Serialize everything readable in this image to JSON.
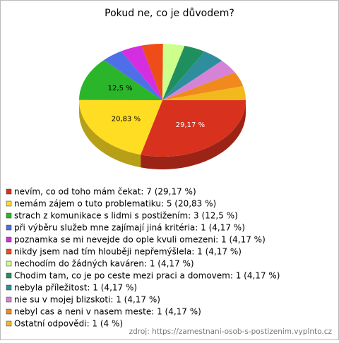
{
  "chart_data": {
    "type": "pie",
    "title": "Pokud ne, co je důvodem?",
    "categories": [
      "nevím, co od toho mám čekat: 7 (29,17 %)",
      "nemám zájem o tuto problematiku: 5 (20,83 %)",
      "strach z komunikace s lidmi s postižením: 3 (12,5 %)",
      "při výběru služeb mne zajímají jiná kritéria: 1 (4,17 %)",
      "poznamka se mi nevejde do ople kvuli omezeni: 1 (4,17 %)",
      "nikdy jsem nad tím hlouběji nepřemýšlela: 1 (4,17 %)",
      "nechodím do žádných kaváren: 1 (4,17 %)",
      "Chodim tam, co je po ceste mezi praci a domovem: 1 (4,17 %)",
      "nebyla příležitost: 1 (4,17 %)",
      "nie su v mojej blizskoti: 1 (4,17 %)",
      "nebyl cas a neni v nasem meste: 1 (4,17 %)",
      "Ostatní odpovědi: 1 (4 %)"
    ],
    "values": [
      29.17,
      20.83,
      12.5,
      4.17,
      4.17,
      4.17,
      4.17,
      4.17,
      4.17,
      4.17,
      4.17,
      4
    ],
    "value_labels": [
      "29,17 %",
      "20,83 %",
      "12,5 %",
      null,
      null,
      null,
      null,
      null,
      null,
      null,
      null,
      null
    ],
    "colors": [
      "#d8321e",
      "#ffdd22",
      "#2bb52b",
      "#4f6fe8",
      "#d42ee0",
      "#ee4c18",
      "#ccff8c",
      "#1f8f5f",
      "#2f8e9e",
      "#d583d6",
      "#f08a1c",
      "#f2b91c"
    ],
    "source": "zdroj: https://zamestnani-osob-s-postizenim.vyplnto.cz"
  }
}
